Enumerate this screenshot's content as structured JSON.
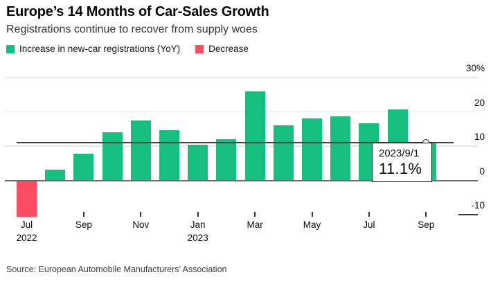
{
  "header": {
    "title": "Europe’s 14 Months of Car-Sales Growth",
    "subtitle": "Registrations continue to recover from supply woes"
  },
  "legend": [
    {
      "label": "Increase in new-car registrations (YoY)",
      "color": "#16be7f",
      "icon": "green-square"
    },
    {
      "label": "Decrease",
      "color": "#fa4d64",
      "icon": "red-square"
    }
  ],
  "chart_data": {
    "type": "bar",
    "title": "Europe’s 14 Months of Car-Sales Growth",
    "subtitle": "Registrations continue to recover from supply woes",
    "unit": "%",
    "categories": [
      "Jul 2022",
      "Aug 2022",
      "Sep 2022",
      "Oct 2022",
      "Nov 2022",
      "Dec 2022",
      "Jan 2023",
      "Feb 2023",
      "Mar 2023",
      "Apr 2023",
      "May 2023",
      "Jun 2023",
      "Jul 2023",
      "Aug 2023",
      "Sep 2023"
    ],
    "values": [
      -10.7,
      3.2,
      7.8,
      14.0,
      17.4,
      14.7,
      10.5,
      12.1,
      26.0,
      16.0,
      18.1,
      18.7,
      16.6,
      20.7,
      11.1
    ],
    "positive_color": "#16be7f",
    "negative_color": "#fa4d64",
    "ylim": [
      -13,
      32
    ],
    "yticks": [
      {
        "value": 30,
        "label": "30%"
      },
      {
        "value": 20,
        "label": "20"
      },
      {
        "value": 10,
        "label": "10"
      },
      {
        "value": 0,
        "label": "0"
      },
      {
        "value": -10,
        "label": "-10"
      }
    ],
    "xticks": [
      {
        "index": 0,
        "label": "Jul",
        "year": "2022"
      },
      {
        "index": 2,
        "label": "Sep"
      },
      {
        "index": 4,
        "label": "Nov"
      },
      {
        "index": 6,
        "label": "Jan",
        "year": "2023"
      },
      {
        "index": 8,
        "label": "Mar"
      },
      {
        "index": 10,
        "label": "May"
      },
      {
        "index": 12,
        "label": "Jul"
      },
      {
        "index": 14,
        "label": "Sep"
      }
    ],
    "grid": "horizontal",
    "legend_position": "top-left",
    "reference_line_value": 11.1,
    "highlight_index": 14,
    "tooltip": {
      "date": "2023/9/1",
      "value_label": "11.1%"
    }
  },
  "footer": {
    "source": "Source: European Automobile Manufacturers’ Association"
  }
}
